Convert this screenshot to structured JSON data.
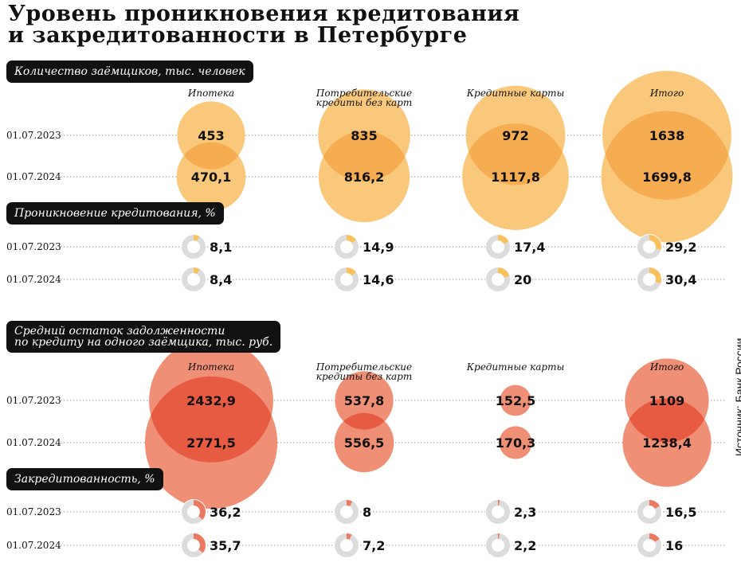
{
  "title": {
    "line1": "Уровень проникновения кредитования",
    "line2": "и закредитованности в Петербурге"
  },
  "source": "Источник: Банк России",
  "colors": {
    "orange_light": "#f9c87a",
    "orange_overlap": "#f6ad52",
    "red_light": "#ef8f76",
    "red_overlap": "#e85b43",
    "donut_track": "#dcdcdc",
    "donut_orange": "#f8c15b",
    "donut_red": "#ec7a62"
  },
  "chart_data": [
    {
      "id": "borrowers",
      "type": "bubble",
      "title": "Количество заёмщиков, тыс. человек",
      "categories": [
        "Ипотека",
        "Потребительские кредиты без карт",
        "Кредитные карты",
        "Итого"
      ],
      "category_lines": [
        [
          "Ипотека"
        ],
        [
          "Потребительские",
          "кредиты без карт"
        ],
        [
          "Кредитные карты"
        ],
        [
          "Итого"
        ]
      ],
      "series": [
        {
          "name": "01.07.2023",
          "values": [
            453,
            835,
            972,
            1638
          ],
          "labels": [
            "453",
            "835",
            "972",
            "1638"
          ]
        },
        {
          "name": "01.07.2024",
          "values": [
            470.1,
            816.2,
            1117.8,
            1699.8
          ],
          "labels": [
            "470,1",
            "816,2",
            "1117,8",
            "1699,8"
          ]
        }
      ]
    },
    {
      "id": "penetration",
      "type": "donut",
      "title": "Проникновение кредитования, %",
      "categories": [
        "Ипотека",
        "Потребительские кредиты без карт",
        "Кредитные карты",
        "Итого"
      ],
      "series": [
        {
          "name": "01.07.2023",
          "values": [
            8.1,
            14.9,
            17.4,
            29.2
          ],
          "labels": [
            "8,1",
            "14,9",
            "17,4",
            "29,2"
          ]
        },
        {
          "name": "01.07.2024",
          "values": [
            8.4,
            14.6,
            20,
            30.4
          ],
          "labels": [
            "8,4",
            "14,6",
            "20",
            "30,4"
          ]
        }
      ]
    },
    {
      "id": "avg_debt",
      "type": "bubble",
      "title": "Средний остаток задолженности по кредиту на одного заёмщика, тыс. руб.",
      "title_lines": [
        "Средний остаток задолженности",
        "по кредиту на одного заёмщика, тыс. руб."
      ],
      "categories": [
        "Ипотека",
        "Потребительские кредиты без карт",
        "Кредитные карты",
        "Итого"
      ],
      "category_lines": [
        [
          "Ипотека"
        ],
        [
          "Потребительские",
          "кредиты без карт"
        ],
        [
          "Кредитные карты"
        ],
        [
          "Итого"
        ]
      ],
      "series": [
        {
          "name": "01.07.2023",
          "values": [
            2432.9,
            537.8,
            152.5,
            1109
          ],
          "labels": [
            "2432,9",
            "537,8",
            "152,5",
            "1109"
          ]
        },
        {
          "name": "01.07.2024",
          "values": [
            2771.5,
            556.5,
            170.3,
            1238.4
          ],
          "labels": [
            "2771,5",
            "556,5",
            "170,3",
            "1238,4"
          ]
        }
      ]
    },
    {
      "id": "debt_load",
      "type": "donut",
      "title": "Закредитованность, %",
      "categories": [
        "Ипотека",
        "Потребительские кредиты без карт",
        "Кредитные карты",
        "Итого"
      ],
      "series": [
        {
          "name": "01.07.2023",
          "values": [
            36.2,
            8,
            2.3,
            16.5
          ],
          "labels": [
            "36,2",
            "8",
            "2,3",
            "16,5"
          ]
        },
        {
          "name": "01.07.2024",
          "values": [
            35.7,
            7.2,
            2.2,
            16
          ],
          "labels": [
            "35,7",
            "7,2",
            "2,2",
            "16"
          ]
        }
      ]
    }
  ]
}
